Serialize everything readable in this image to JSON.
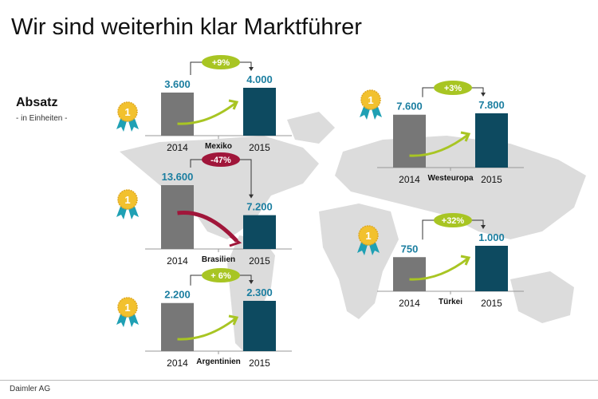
{
  "title": "Wir sind weiterhin klar Marktführer",
  "metric_label": "Absatz",
  "unit_label": "- in Einheiten -",
  "footer": "Daimler AG",
  "colors": {
    "bar_2014": "#777777",
    "bar_2015": "#0d4a60",
    "value_text": "#1b7ea0",
    "growth_positive": "#a8c523",
    "growth_negative": "#a0163a",
    "ribbon": "#1fa0b4",
    "medal": "#f2c12e",
    "map": "#dcdcdc"
  },
  "chart_data": [
    {
      "type": "bar",
      "market": "Mexiko",
      "categories": [
        "2014",
        "2015"
      ],
      "values": [
        3600,
        4000
      ],
      "value_labels": [
        "3.600",
        "4.000"
      ],
      "change": "+9%",
      "trend": "up",
      "rank": "1"
    },
    {
      "type": "bar",
      "market": "Brasilien",
      "categories": [
        "2014",
        "2015"
      ],
      "values": [
        13600,
        7200
      ],
      "value_labels": [
        "13.600",
        "7.200"
      ],
      "change": "-47%",
      "trend": "down",
      "rank": "1"
    },
    {
      "type": "bar",
      "market": "Argentinien",
      "categories": [
        "2014",
        "2015"
      ],
      "values": [
        2200,
        2300
      ],
      "value_labels": [
        "2.200",
        "2.300"
      ],
      "change": "+ 6%",
      "trend": "up",
      "rank": "1"
    },
    {
      "type": "bar",
      "market": "Westeuropa",
      "categories": [
        "2014",
        "2015"
      ],
      "values": [
        7600,
        7800
      ],
      "value_labels": [
        "7.600",
        "7.800"
      ],
      "change": "+3%",
      "trend": "up",
      "rank": "1"
    },
    {
      "type": "bar",
      "market": "Türkei",
      "categories": [
        "2014",
        "2015"
      ],
      "values": [
        750,
        1000
      ],
      "value_labels": [
        "750",
        "1.000"
      ],
      "change": "+32%",
      "trend": "up",
      "rank": "1"
    }
  ]
}
